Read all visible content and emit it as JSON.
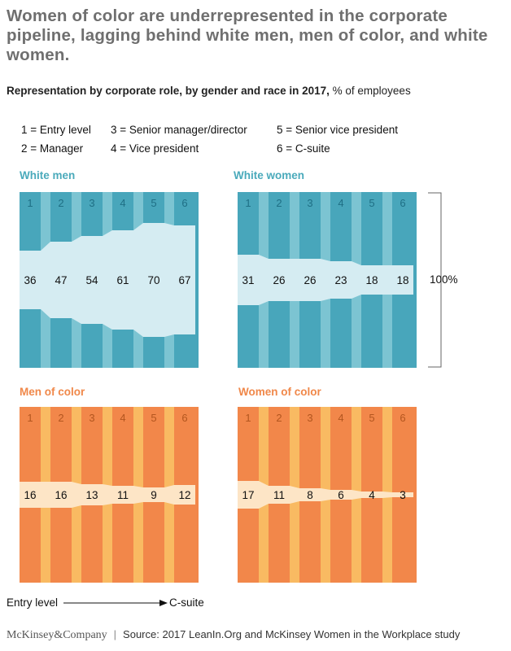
{
  "title": "Women of color are underrepresented in the corporate pipeline, lagging behind white men, men of color, and white women.",
  "subtitle_bold": "Representation by corporate role, by gender and race in 2017,",
  "subtitle_rest": " % of employees",
  "legend": [
    "1 = Entry level",
    "2 = Manager",
    "3 = Senior manager/director",
    "4 = Vice president",
    "5 = Senior vice president",
    "6 = C-suite"
  ],
  "bracket_label": "100%",
  "axis_note": {
    "start": "Entry level",
    "end": "C-suite"
  },
  "footer": {
    "brand": "McKinsey&Company",
    "source": "Source: 2017 LeanIn.Org and McKinsey Women in the Workplace study"
  },
  "colors": {
    "teal_dark": "#48a6bb",
    "teal_light": "#d5ecf2",
    "teal_stripe": "#7cc4d2",
    "teal_title": "#4aaabb",
    "orange_dark": "#f2874a",
    "orange_light": "#fde5c6",
    "orange_stripe": "#f9ba62",
    "orange_title": "#f0884a"
  },
  "chart_data": [
    {
      "type": "bar",
      "title": "White men",
      "categories": [
        "1",
        "2",
        "3",
        "4",
        "5",
        "6"
      ],
      "values": [
        36,
        47,
        54,
        61,
        70,
        67
      ],
      "ylim": [
        0,
        100
      ],
      "palette": "teal"
    },
    {
      "type": "bar",
      "title": "White women",
      "categories": [
        "1",
        "2",
        "3",
        "4",
        "5",
        "6"
      ],
      "values": [
        31,
        26,
        26,
        23,
        18,
        18
      ],
      "ylim": [
        0,
        100
      ],
      "palette": "teal"
    },
    {
      "type": "bar",
      "title": "Men of color",
      "categories": [
        "1",
        "2",
        "3",
        "4",
        "5",
        "6"
      ],
      "values": [
        16,
        16,
        13,
        11,
        9,
        12
      ],
      "ylim": [
        0,
        100
      ],
      "palette": "orange"
    },
    {
      "type": "bar",
      "title": "Women of color",
      "categories": [
        "1",
        "2",
        "3",
        "4",
        "5",
        "6"
      ],
      "values": [
        17,
        11,
        8,
        6,
        4,
        3
      ],
      "ylim": [
        0,
        100
      ],
      "palette": "orange"
    }
  ]
}
